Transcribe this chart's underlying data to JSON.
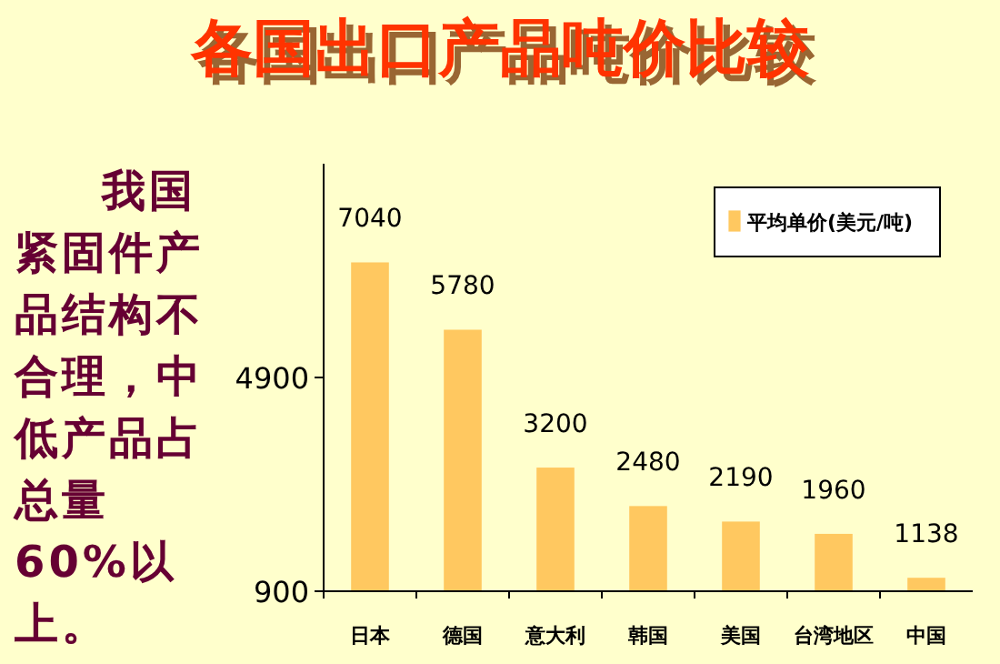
{
  "chart_data": {
    "type": "bar",
    "title": "各国出口产品吨价比较",
    "categories": [
      "日本",
      "德国",
      "意大利",
      "韩国",
      "美国",
      "台湾地区",
      "中国"
    ],
    "series": [
      {
        "name": "平均单价(美元/吨)",
        "color": "#ffc860",
        "values": [
          7040,
          5780,
          3200,
          2480,
          2190,
          1960,
          1138
        ]
      }
    ],
    "ylim": [
      900,
      8900
    ],
    "yticks": [
      900,
      4900
    ],
    "data_labels": true,
    "legend": "top right",
    "grid": false,
    "annotations": [
      "我国紧固件产品结构不合理，中低产品占总量60%以上。"
    ]
  }
}
